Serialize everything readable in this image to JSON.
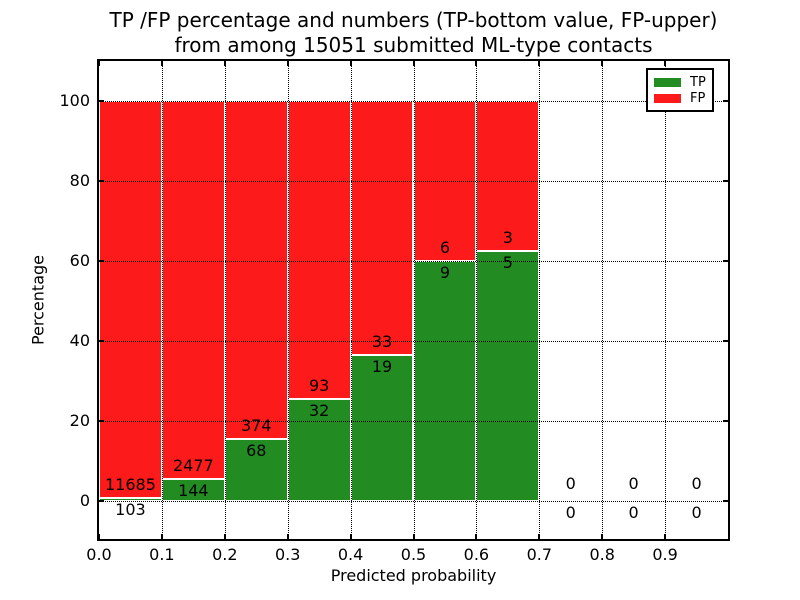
{
  "chart_data": {
    "type": "bar",
    "stacked": true,
    "title_line1": "TP /FP percentage and numbers (TP-bottom value, FP-upper)",
    "title_line2": "from among 15051 submitted ML-type contacts",
    "xlabel": "Predicted probability",
    "ylabel": "Percentage",
    "total_contacts": 15051,
    "xlim": [
      0.0,
      1.0
    ],
    "ylim": [
      -10,
      110
    ],
    "grid": true,
    "x_ticks": [
      0.0,
      0.1,
      0.2,
      0.3,
      0.4,
      0.5,
      0.6,
      0.7,
      0.8,
      0.9
    ],
    "x_tick_labels": [
      "0.0",
      "0.1",
      "0.2",
      "0.3",
      "0.4",
      "0.5",
      "0.6",
      "0.7",
      "0.8",
      "0.9"
    ],
    "y_ticks": [
      0,
      20,
      40,
      60,
      80,
      100
    ],
    "y_tick_labels": [
      "0",
      "20",
      "40",
      "60",
      "80",
      "100"
    ],
    "annotation_note": "TP count below green top, FP count above green top; bars stacked to 100%",
    "legend": {
      "position": "upper right",
      "entries": [
        {
          "label": "TP",
          "color": "#228b22"
        },
        {
          "label": "FP",
          "color": "#fc1a1a"
        }
      ]
    },
    "colors": {
      "tp": "#228b22",
      "fp": "#fc1a1a"
    },
    "bins": [
      {
        "x_start": 0.0,
        "x_end": 0.1,
        "tp": 103,
        "fp": 11685
      },
      {
        "x_start": 0.1,
        "x_end": 0.2,
        "tp": 144,
        "fp": 2477
      },
      {
        "x_start": 0.2,
        "x_end": 0.3,
        "tp": 68,
        "fp": 374
      },
      {
        "x_start": 0.3,
        "x_end": 0.4,
        "tp": 32,
        "fp": 93
      },
      {
        "x_start": 0.4,
        "x_end": 0.5,
        "tp": 19,
        "fp": 33
      },
      {
        "x_start": 0.5,
        "x_end": 0.6,
        "tp": 9,
        "fp": 6
      },
      {
        "x_start": 0.6,
        "x_end": 0.7,
        "tp": 5,
        "fp": 3
      },
      {
        "x_start": 0.7,
        "x_end": 0.8,
        "tp": 0,
        "fp": 0
      },
      {
        "x_start": 0.8,
        "x_end": 0.9,
        "tp": 0,
        "fp": 0
      },
      {
        "x_start": 0.9,
        "x_end": 1.0,
        "tp": 0,
        "fp": 0
      }
    ]
  }
}
